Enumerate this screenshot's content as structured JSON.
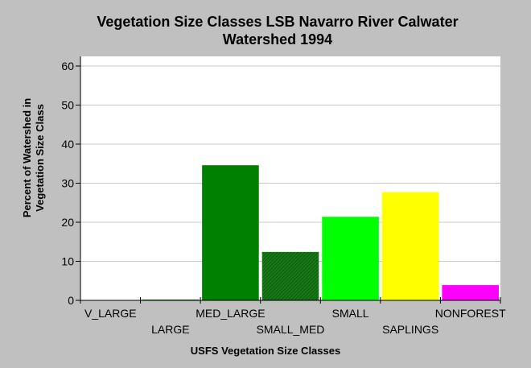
{
  "chart_data": {
    "type": "bar",
    "title_line1": "Vegetation Size Classes LSB Navarro River Calwater",
    "title_line2": "Watershed 1994",
    "xlabel": "USFS Vegetation Size Classes",
    "ylabel_line1": "Percent of Watershed in",
    "ylabel_line2": "Vegetation Size Class",
    "categories": [
      "V_LARGE",
      "LARGE",
      "MED_LARGE",
      "SMALL_MED",
      "SMALL",
      "SAPLINGS",
      "NONFOREST"
    ],
    "values": [
      0.0,
      0.2,
      34.6,
      12.4,
      21.4,
      27.7,
      3.9
    ],
    "colors": [
      "#008000",
      "#008000",
      "#008000",
      "#006600",
      "#00ff00",
      "#ffff00",
      "#ff00ff"
    ],
    "patterns": [
      "solid",
      "solid",
      "solid",
      "hatch",
      "solid",
      "solid",
      "solid"
    ],
    "ylim": [
      0,
      60
    ],
    "yticks": [
      0,
      10,
      20,
      30,
      40,
      50,
      60
    ],
    "grid": true
  }
}
